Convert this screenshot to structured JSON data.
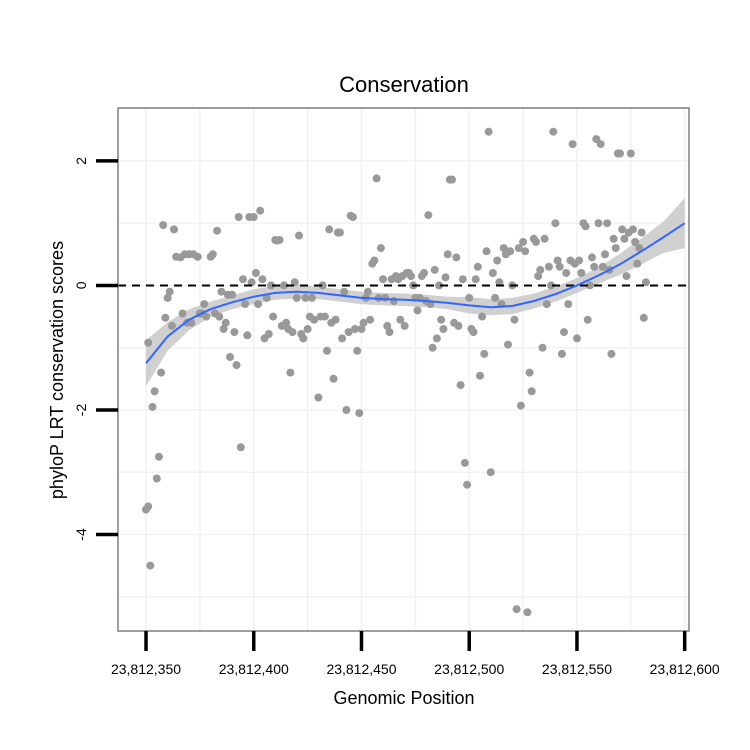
{
  "chart_data": {
    "type": "scatter",
    "title": "Conservation",
    "xlabel": "Genomic Position",
    "ylabel": "phyloP LRT conservation scores",
    "xlim": [
      23812337,
      23812602
    ],
    "ylim": [
      -5.55,
      2.85
    ],
    "x_ticks": [
      23812350,
      23812400,
      23812450,
      23812500,
      23812550,
      23812600
    ],
    "x_tick_labels": [
      "23,812,350",
      "23,812,400",
      "23,812,450",
      "23,812,500",
      "23,812,550",
      "23,812,600"
    ],
    "y_ticks": [
      -4,
      -2,
      0,
      2
    ],
    "y_tick_labels": [
      "-4",
      "-2",
      "0",
      "2"
    ],
    "reference_line": {
      "y": 0,
      "style": "dashed"
    },
    "colors": {
      "points": "#999999",
      "smooth_line": "#3366ff",
      "ribbon": "#c8c8c8",
      "grid": "#f2f2f2",
      "panel_border": "#7f7f7f"
    },
    "points": [
      [
        23812350,
        -3.6
      ],
      [
        23812351,
        -3.55
      ],
      [
        23812351,
        -0.92
      ],
      [
        23812352,
        -4.5
      ],
      [
        23812353,
        -1.95
      ],
      [
        23812354,
        -1.7
      ],
      [
        23812355,
        -3.1
      ],
      [
        23812356,
        -2.75
      ],
      [
        23812357,
        -1.4
      ],
      [
        23812358,
        0.97
      ],
      [
        23812359,
        -0.52
      ],
      [
        23812360,
        -0.2
      ],
      [
        23812361,
        -0.1
      ],
      [
        23812362,
        -0.65
      ],
      [
        23812363,
        0.9
      ],
      [
        23812364,
        0.46
      ],
      [
        23812366,
        0.45
      ],
      [
        23812367,
        -0.45
      ],
      [
        23812368,
        0.5
      ],
      [
        23812369,
        -0.6
      ],
      [
        23812370,
        0.5
      ],
      [
        23812371,
        -0.6
      ],
      [
        23812372,
        0.5
      ],
      [
        23812374,
        0.46
      ],
      [
        23812375,
        -0.45
      ],
      [
        23812376,
        -0.45
      ],
      [
        23812377,
        -0.3
      ],
      [
        23812378,
        -0.5
      ],
      [
        23812380,
        0.46
      ],
      [
        23812381,
        0.5
      ],
      [
        23812382,
        -0.45
      ],
      [
        23812383,
        0.88
      ],
      [
        23812384,
        -0.5
      ],
      [
        23812385,
        -0.1
      ],
      [
        23812386,
        -0.7
      ],
      [
        23812387,
        -0.6
      ],
      [
        23812388,
        -0.15
      ],
      [
        23812389,
        -1.15
      ],
      [
        23812390,
        -0.15
      ],
      [
        23812391,
        -0.75
      ],
      [
        23812392,
        -1.28
      ],
      [
        23812393,
        1.1
      ],
      [
        23812394,
        -2.6
      ],
      [
        23812395,
        0.1
      ],
      [
        23812396,
        -0.3
      ],
      [
        23812397,
        -0.8
      ],
      [
        23812398,
        1.1
      ],
      [
        23812399,
        0.05
      ],
      [
        23812400,
        1.1
      ],
      [
        23812401,
        0.2
      ],
      [
        23812402,
        -0.3
      ],
      [
        23812403,
        1.2
      ],
      [
        23812404,
        0.1
      ],
      [
        23812405,
        -0.85
      ],
      [
        23812406,
        -0.2
      ],
      [
        23812407,
        -0.78
      ],
      [
        23812408,
        0.0
      ],
      [
        23812409,
        -0.5
      ],
      [
        23812410,
        0.73
      ],
      [
        23812411,
        0.72
      ],
      [
        23812412,
        0.73
      ],
      [
        23812413,
        -0.65
      ],
      [
        23812414,
        0.0
      ],
      [
        23812415,
        -0.6
      ],
      [
        23812416,
        -0.7
      ],
      [
        23812417,
        -1.4
      ],
      [
        23812418,
        -0.75
      ],
      [
        23812419,
        0.05
      ],
      [
        23812420,
        -0.2
      ],
      [
        23812421,
        0.8
      ],
      [
        23812422,
        -0.78
      ],
      [
        23812423,
        -0.85
      ],
      [
        23812424,
        -0.2
      ],
      [
        23812425,
        -0.7
      ],
      [
        23812426,
        -0.5
      ],
      [
        23812427,
        -0.2
      ],
      [
        23812428,
        -0.55
      ],
      [
        23812430,
        -1.8
      ],
      [
        23812431,
        -0.5
      ],
      [
        23812432,
        0.0
      ],
      [
        23812433,
        -0.5
      ],
      [
        23812434,
        -1.05
      ],
      [
        23812435,
        0.9
      ],
      [
        23812436,
        -0.6
      ],
      [
        23812437,
        -1.5
      ],
      [
        23812438,
        -0.55
      ],
      [
        23812439,
        0.85
      ],
      [
        23812440,
        0.85
      ],
      [
        23812441,
        -0.85
      ],
      [
        23812442,
        -0.1
      ],
      [
        23812443,
        -2.0
      ],
      [
        23812444,
        -0.75
      ],
      [
        23812445,
        1.12
      ],
      [
        23812446,
        1.1
      ],
      [
        23812447,
        -0.7
      ],
      [
        23812448,
        -1.05
      ],
      [
        23812449,
        -2.05
      ],
      [
        23812450,
        -0.7
      ],
      [
        23812451,
        -0.6
      ],
      [
        23812452,
        -0.2
      ],
      [
        23812453,
        -0.1
      ],
      [
        23812454,
        -0.55
      ],
      [
        23812455,
        0.35
      ],
      [
        23812456,
        0.4
      ],
      [
        23812457,
        1.72
      ],
      [
        23812458,
        -0.2
      ],
      [
        23812459,
        0.6
      ],
      [
        23812460,
        0.1
      ],
      [
        23812461,
        -0.2
      ],
      [
        23812462,
        -0.65
      ],
      [
        23812463,
        -0.75
      ],
      [
        23812464,
        0.1
      ],
      [
        23812465,
        -0.25
      ],
      [
        23812466,
        0.15
      ],
      [
        23812467,
        0.1
      ],
      [
        23812468,
        -0.55
      ],
      [
        23812469,
        0.15
      ],
      [
        23812470,
        -0.65
      ],
      [
        23812471,
        0.2
      ],
      [
        23812472,
        0.2
      ],
      [
        23812473,
        0.15
      ],
      [
        23812474,
        0.0
      ],
      [
        23812475,
        -0.2
      ],
      [
        23812476,
        -0.4
      ],
      [
        23812477,
        -0.2
      ],
      [
        23812478,
        0.15
      ],
      [
        23812479,
        0.2
      ],
      [
        23812480,
        -0.25
      ],
      [
        23812481,
        1.13
      ],
      [
        23812482,
        -0.3
      ],
      [
        23812483,
        -1.0
      ],
      [
        23812484,
        0.25
      ],
      [
        23812485,
        -0.85
      ],
      [
        23812486,
        0.0
      ],
      [
        23812487,
        -0.55
      ],
      [
        23812488,
        -0.7
      ],
      [
        23812489,
        0.13
      ],
      [
        23812490,
        0.5
      ],
      [
        23812491,
        1.7
      ],
      [
        23812492,
        1.7
      ],
      [
        23812493,
        -0.6
      ],
      [
        23812494,
        0.45
      ],
      [
        23812495,
        -0.65
      ],
      [
        23812496,
        -1.6
      ],
      [
        23812497,
        0.1
      ],
      [
        23812498,
        -2.85
      ],
      [
        23812499,
        -3.2
      ],
      [
        23812500,
        -0.2
      ],
      [
        23812501,
        -0.7
      ],
      [
        23812502,
        -0.75
      ],
      [
        23812503,
        0.1
      ],
      [
        23812504,
        0.3
      ],
      [
        23812505,
        -1.45
      ],
      [
        23812506,
        -0.5
      ],
      [
        23812507,
        -1.1
      ],
      [
        23812508,
        0.55
      ],
      [
        23812509,
        2.47
      ],
      [
        23812510,
        -3.0
      ],
      [
        23812511,
        0.2
      ],
      [
        23812512,
        -0.2
      ],
      [
        23812513,
        0.4
      ],
      [
        23812514,
        0.05
      ],
      [
        23812515,
        -0.3
      ],
      [
        23812516,
        0.6
      ],
      [
        23812517,
        0.5
      ],
      [
        23812518,
        -0.95
      ],
      [
        23812519,
        0.55
      ],
      [
        23812520,
        0.0
      ],
      [
        23812521,
        -0.55
      ],
      [
        23812522,
        -5.2
      ],
      [
        23812523,
        0.6
      ],
      [
        23812524,
        -1.93
      ],
      [
        23812525,
        0.7
      ],
      [
        23812526,
        0.55
      ],
      [
        23812527,
        -5.25
      ],
      [
        23812528,
        -1.4
      ],
      [
        23812529,
        -1.7
      ],
      [
        23812530,
        0.75
      ],
      [
        23812531,
        0.7
      ],
      [
        23812532,
        0.15
      ],
      [
        23812533,
        0.25
      ],
      [
        23812534,
        -1.0
      ],
      [
        23812535,
        0.75
      ],
      [
        23812536,
        -0.3
      ],
      [
        23812537,
        0.3
      ],
      [
        23812538,
        0.0
      ],
      [
        23812539,
        2.47
      ],
      [
        23812540,
        1.0
      ],
      [
        23812541,
        0.4
      ],
      [
        23812542,
        0.3
      ],
      [
        23812543,
        -1.1
      ],
      [
        23812544,
        -0.75
      ],
      [
        23812545,
        0.2
      ],
      [
        23812546,
        -0.3
      ],
      [
        23812547,
        0.4
      ],
      [
        23812548,
        2.27
      ],
      [
        23812549,
        0.35
      ],
      [
        23812550,
        -0.85
      ],
      [
        23812551,
        0.4
      ],
      [
        23812552,
        0.2
      ],
      [
        23812553,
        1.0
      ],
      [
        23812554,
        0.95
      ],
      [
        23812555,
        -0.55
      ],
      [
        23812556,
        0.0
      ],
      [
        23812557,
        0.45
      ],
      [
        23812558,
        0.3
      ],
      [
        23812559,
        2.35
      ],
      [
        23812560,
        1.0
      ],
      [
        23812561,
        2.27
      ],
      [
        23812562,
        0.3
      ],
      [
        23812563,
        0.5
      ],
      [
        23812564,
        1.0
      ],
      [
        23812565,
        0.25
      ],
      [
        23812566,
        -1.1
      ],
      [
        23812567,
        0.75
      ],
      [
        23812568,
        0.6
      ],
      [
        23812569,
        2.12
      ],
      [
        23812570,
        2.12
      ],
      [
        23812571,
        0.9
      ],
      [
        23812572,
        0.75
      ],
      [
        23812573,
        0.15
      ],
      [
        23812574,
        0.85
      ],
      [
        23812575,
        2.12
      ],
      [
        23812576,
        0.9
      ],
      [
        23812577,
        0.7
      ],
      [
        23812578,
        0.35
      ],
      [
        23812579,
        0.6
      ],
      [
        23812580,
        0.85
      ],
      [
        23812581,
        -0.52
      ],
      [
        23812582,
        0.05
      ]
    ],
    "smooth": {
      "x": [
        23812350,
        23812360,
        23812370,
        23812380,
        23812390,
        23812400,
        23812410,
        23812420,
        23812430,
        23812440,
        23812450,
        23812460,
        23812470,
        23812480,
        23812490,
        23812500,
        23812510,
        23812520,
        23812530,
        23812540,
        23812550,
        23812560,
        23812570,
        23812580,
        23812590,
        23812600
      ],
      "y": [
        -1.25,
        -0.82,
        -0.55,
        -0.38,
        -0.27,
        -0.18,
        -0.12,
        -0.1,
        -0.12,
        -0.16,
        -0.2,
        -0.22,
        -0.23,
        -0.25,
        -0.28,
        -0.32,
        -0.35,
        -0.33,
        -0.25,
        -0.14,
        0.0,
        0.16,
        0.34,
        0.55,
        0.77,
        1.0
      ],
      "lower": [
        -1.62,
        -1.05,
        -0.72,
        -0.5,
        -0.38,
        -0.3,
        -0.23,
        -0.21,
        -0.22,
        -0.26,
        -0.3,
        -0.32,
        -0.33,
        -0.35,
        -0.38,
        -0.45,
        -0.48,
        -0.46,
        -0.37,
        -0.26,
        -0.12,
        0.03,
        0.17,
        0.34,
        0.52,
        0.6
      ],
      "upper": [
        -0.88,
        -0.59,
        -0.38,
        -0.26,
        -0.16,
        -0.06,
        -0.01,
        0.01,
        -0.02,
        -0.06,
        -0.1,
        -0.12,
        -0.13,
        -0.15,
        -0.18,
        -0.19,
        -0.22,
        -0.2,
        -0.13,
        -0.02,
        0.12,
        0.29,
        0.51,
        0.76,
        1.02,
        1.4
      ]
    }
  }
}
